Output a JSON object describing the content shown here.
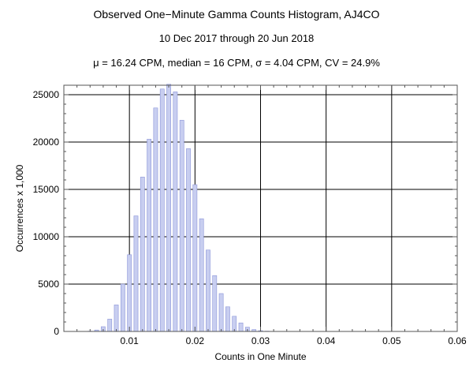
{
  "header": {
    "title": "Observed One−Minute Gamma Counts Histogram, AJ4CO",
    "subtitle": "10 Dec 2017 through 20 Jun 2018",
    "stats": "μ = 16.24 CPM,   median = 16 CPM,   σ = 4.04 CPM,   CV = 24.9%"
  },
  "chart_data": {
    "type": "bar",
    "xlabel": "Counts in One Minute",
    "ylabel": "Occurrences x 1,000",
    "xlim": [
      0.0,
      0.06
    ],
    "ylim": [
      0,
      26000
    ],
    "xticks": [
      "0.01",
      "0.02",
      "0.03",
      "0.04",
      "0.05",
      "0.06"
    ],
    "xtick_values": [
      0.01,
      0.02,
      0.03,
      0.04,
      0.05,
      0.06
    ],
    "yticks": [
      "0",
      "5000",
      "10000",
      "15000",
      "20000",
      "25000"
    ],
    "ytick_values": [
      0,
      5000,
      10000,
      15000,
      20000,
      25000
    ],
    "grid": true,
    "bar_color": "#c8cef0",
    "bar_edge_color": "#8a94d8",
    "x": [
      0.004,
      0.005,
      0.006,
      0.007,
      0.008,
      0.009,
      0.01,
      0.011,
      0.012,
      0.013,
      0.014,
      0.015,
      0.016,
      0.017,
      0.018,
      0.019,
      0.02,
      0.021,
      0.022,
      0.023,
      0.024,
      0.025,
      0.026,
      0.027,
      0.028,
      0.029,
      0.03,
      0.031,
      0.032
    ],
    "values": [
      30,
      150,
      500,
      1300,
      2800,
      5000,
      8100,
      12200,
      16300,
      20300,
      23600,
      25600,
      26100,
      25300,
      22300,
      19300,
      15500,
      11900,
      8600,
      5900,
      4000,
      2600,
      1600,
      900,
      450,
      200,
      80,
      30,
      10
    ]
  }
}
